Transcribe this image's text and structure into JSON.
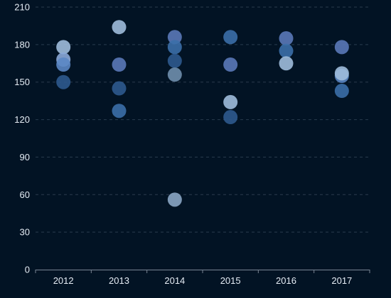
{
  "chart_data": {
    "type": "scatter",
    "title": "",
    "xlabel": "",
    "ylabel": "",
    "categories": [
      "2012",
      "2013",
      "2014",
      "2015",
      "2016",
      "2017"
    ],
    "ylim": [
      0,
      210
    ],
    "yticks": [
      0,
      30,
      60,
      90,
      120,
      150,
      180,
      210
    ],
    "grid": true,
    "legend": "none",
    "points": [
      {
        "x": "2012",
        "y": 178,
        "color": "#9fbcdc"
      },
      {
        "x": "2012",
        "y": 168,
        "color": "#8aa8d8"
      },
      {
        "x": "2012",
        "y": 164,
        "color": "#5b87c4"
      },
      {
        "x": "2012",
        "y": 150,
        "color": "#2e5a8e"
      },
      {
        "x": "2013",
        "y": 194,
        "color": "#9fbcdc"
      },
      {
        "x": "2013",
        "y": 164,
        "color": "#5a79b8"
      },
      {
        "x": "2013",
        "y": 145,
        "color": "#2e5a8e"
      },
      {
        "x": "2013",
        "y": 127,
        "color": "#3b6fa8"
      },
      {
        "x": "2014",
        "y": 186,
        "color": "#5a79b8"
      },
      {
        "x": "2014",
        "y": 178,
        "color": "#3b6fa8"
      },
      {
        "x": "2014",
        "y": 167,
        "color": "#2e5a8e"
      },
      {
        "x": "2014",
        "y": 156,
        "color": "#6f8fad"
      },
      {
        "x": "2014",
        "y": 56,
        "color": "#8aa6c4"
      },
      {
        "x": "2015",
        "y": 186,
        "color": "#3b6fa8"
      },
      {
        "x": "2015",
        "y": 164,
        "color": "#5a79b8"
      },
      {
        "x": "2015",
        "y": 134,
        "color": "#9fbcdc"
      },
      {
        "x": "2015",
        "y": 122,
        "color": "#2e5a8e"
      },
      {
        "x": "2016",
        "y": 185,
        "color": "#5a79b8"
      },
      {
        "x": "2016",
        "y": 175,
        "color": "#3b6fa8"
      },
      {
        "x": "2016",
        "y": 165,
        "color": "#9fbcdc"
      },
      {
        "x": "2017",
        "y": 178,
        "color": "#5a79b8"
      },
      {
        "x": "2017",
        "y": 155,
        "color": "#5b87c4"
      },
      {
        "x": "2017",
        "y": 157,
        "color": "#9fbcdc"
      },
      {
        "x": "2017",
        "y": 143,
        "color": "#3b6fa8"
      }
    ]
  }
}
